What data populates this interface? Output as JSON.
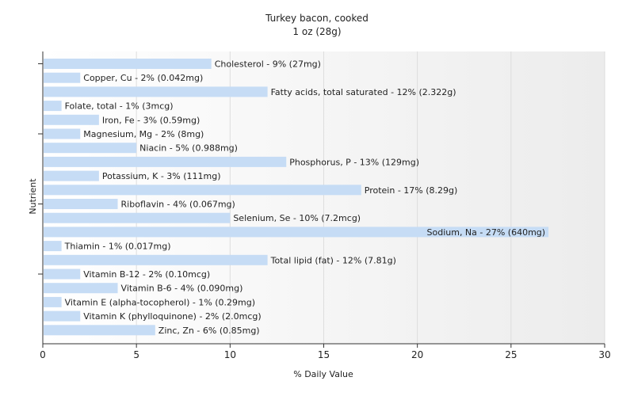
{
  "chart_data": {
    "type": "bar",
    "orientation": "horizontal",
    "title": "Turkey bacon, cooked",
    "subtitle": "1 oz (28g)",
    "xlabel": "% Daily Value",
    "ylabel": "Nutrient",
    "xlim": [
      0,
      30
    ],
    "xticks": [
      0,
      5,
      10,
      15,
      20,
      25,
      30
    ],
    "grid": true,
    "bar_color": "#c6dcf5",
    "categories": [
      "Cholesterol",
      "Copper, Cu",
      "Fatty acids, total saturated",
      "Folate, total",
      "Iron, Fe",
      "Magnesium, Mg",
      "Niacin",
      "Phosphorus, P",
      "Potassium, K",
      "Protein",
      "Riboflavin",
      "Selenium, Se",
      "Sodium, Na",
      "Thiamin",
      "Total lipid (fat)",
      "Vitamin B-12",
      "Vitamin B-6",
      "Vitamin E (alpha-tocopherol)",
      "Vitamin K (phylloquinone)",
      "Zinc, Zn"
    ],
    "values": [
      9,
      2,
      12,
      1,
      3,
      2,
      5,
      13,
      3,
      17,
      4,
      10,
      27,
      1,
      12,
      2,
      4,
      1,
      2,
      6
    ],
    "labels": [
      "Cholesterol - 9% (27mg)",
      "Copper, Cu - 2% (0.042mg)",
      "Fatty acids, total saturated - 12% (2.322g)",
      "Folate, total - 1% (3mcg)",
      "Iron, Fe - 3% (0.59mg)",
      "Magnesium, Mg - 2% (8mg)",
      "Niacin - 5% (0.988mg)",
      "Phosphorus, P - 13% (129mg)",
      "Potassium, K - 3% (111mg)",
      "Protein - 17% (8.29g)",
      "Riboflavin - 4% (0.067mg)",
      "Selenium, Se - 10% (7.2mcg)",
      "Sodium, Na - 27% (640mg)",
      "Thiamin - 1% (0.017mg)",
      "Total lipid (fat) - 12% (7.81g)",
      "Vitamin B-12 - 2% (0.10mcg)",
      "Vitamin B-6 - 4% (0.090mg)",
      "Vitamin E (alpha-tocopherol) - 1% (0.29mg)",
      "Vitamin K (phylloquinone) - 2% (2.0mcg)",
      "Zinc, Zn - 6% (0.85mg)"
    ]
  }
}
